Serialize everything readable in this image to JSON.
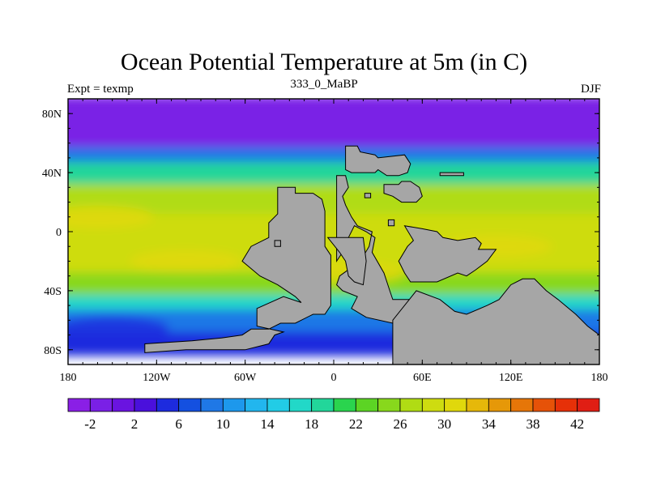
{
  "chart_data": {
    "type": "heatmap",
    "title": "Ocean Potential Temperature at 5m (in C)",
    "subtitle_left": "Expt = texmp",
    "subtitle_center": "333_0_MaBP",
    "subtitle_right": "DJF",
    "x_range": [
      -180,
      180
    ],
    "y_range": [
      -90,
      90
    ],
    "x_ticks": [
      {
        "value": -180,
        "label": "180"
      },
      {
        "value": -120,
        "label": "120W"
      },
      {
        "value": -60,
        "label": "60W"
      },
      {
        "value": 0,
        "label": "0"
      },
      {
        "value": 60,
        "label": "60E"
      },
      {
        "value": 120,
        "label": "120E"
      },
      {
        "value": 180,
        "label": "180"
      }
    ],
    "y_ticks": [
      {
        "value": 80,
        "label": "80N"
      },
      {
        "value": 40,
        "label": "40N"
      },
      {
        "value": 0,
        "label": "0"
      },
      {
        "value": -40,
        "label": "40S"
      },
      {
        "value": -80,
        "label": "80S"
      }
    ],
    "colorbar": {
      "levels": [
        -4,
        -2,
        0,
        2,
        4,
        6,
        8,
        10,
        12,
        14,
        16,
        18,
        20,
        22,
        24,
        26,
        28,
        30,
        32,
        34,
        36,
        38,
        40,
        42,
        44
      ],
      "labels": [
        {
          "value": -2,
          "label": "-2"
        },
        {
          "value": 2,
          "label": "2"
        },
        {
          "value": 6,
          "label": "6"
        },
        {
          "value": 10,
          "label": "10"
        },
        {
          "value": 14,
          "label": "14"
        },
        {
          "value": 18,
          "label": "18"
        },
        {
          "value": 22,
          "label": "22"
        },
        {
          "value": 26,
          "label": "26"
        },
        {
          "value": 30,
          "label": "30"
        },
        {
          "value": 34,
          "label": "34"
        },
        {
          "value": 38,
          "label": "38"
        },
        {
          "value": 42,
          "label": "42"
        }
      ],
      "colors": [
        "#8a1fe6",
        "#7a20e6",
        "#6a14e0",
        "#4a10dc",
        "#1d2bde",
        "#1450e0",
        "#1f78e6",
        "#1d98ec",
        "#22b6ee",
        "#22cce6",
        "#22d8c8",
        "#22d69a",
        "#2ad44e",
        "#5cd424",
        "#88d81c",
        "#b0dc14",
        "#cedc10",
        "#e0d80c",
        "#e6b80a",
        "#e69808",
        "#e67608",
        "#e65208",
        "#e63008",
        "#e01e14"
      ]
    },
    "temperature_zones": [
      {
        "lat_from": 90,
        "lat_to": 55,
        "temp": -2
      },
      {
        "lat_from": 55,
        "lat_to": 45,
        "temp": 8
      },
      {
        "lat_from": 45,
        "lat_to": 30,
        "temp": 18
      },
      {
        "lat_from": 30,
        "lat_to": 10,
        "temp": 26
      },
      {
        "lat_from": 10,
        "lat_to": -30,
        "temp": 28
      },
      {
        "lat_from": -30,
        "lat_to": -45,
        "temp": 24
      },
      {
        "lat_from": -45,
        "lat_to": -55,
        "temp": 16
      },
      {
        "lat_from": -55,
        "lat_to": -70,
        "temp": 8
      },
      {
        "lat_from": -70,
        "lat_to": -82,
        "temp": 4
      }
    ],
    "warm_spots": [
      {
        "lon": -160,
        "lat": 10,
        "temp": 30
      },
      {
        "lon": -100,
        "lat": -20,
        "temp": 30
      },
      {
        "lon": 110,
        "lat": -10,
        "temp": 31
      },
      {
        "lon": 10,
        "lat": -28,
        "temp": 31
      },
      {
        "lon": -150,
        "lat": -65,
        "temp": 4
      }
    ],
    "landmasses": [
      {
        "name": "americas",
        "points": [
          [
            -38,
            30
          ],
          [
            -26,
            30
          ],
          [
            -26,
            26
          ],
          [
            -14,
            26
          ],
          [
            -8,
            22
          ],
          [
            -6,
            14
          ],
          [
            -6,
            -10
          ],
          [
            -2,
            -16
          ],
          [
            -2,
            -50
          ],
          [
            -6,
            -56
          ],
          [
            -14,
            -56
          ],
          [
            -22,
            -60
          ],
          [
            -26,
            -62
          ],
          [
            -36,
            -62
          ],
          [
            -44,
            -66
          ],
          [
            -56,
            -66
          ],
          [
            -62,
            -70
          ],
          [
            -76,
            -72
          ],
          [
            -96,
            -74
          ],
          [
            -128,
            -76
          ],
          [
            -128,
            -82
          ],
          [
            -100,
            -80
          ],
          [
            -60,
            -80
          ],
          [
            -44,
            -76
          ],
          [
            -40,
            -70
          ],
          [
            -34,
            -68
          ],
          [
            -52,
            -64
          ],
          [
            -52,
            -52
          ],
          [
            -34,
            -44
          ],
          [
            -22,
            -48
          ],
          [
            -26,
            -44
          ],
          [
            -38,
            -36
          ],
          [
            -50,
            -30
          ],
          [
            -62,
            -20
          ],
          [
            -56,
            -10
          ],
          [
            -44,
            -4
          ],
          [
            -44,
            6
          ],
          [
            -38,
            12
          ],
          [
            -38,
            30
          ]
        ]
      },
      {
        "name": "europe-africa",
        "points": [
          [
            2,
            38
          ],
          [
            8,
            38
          ],
          [
            10,
            30
          ],
          [
            6,
            24
          ],
          [
            8,
            18
          ],
          [
            12,
            10
          ],
          [
            16,
            4
          ],
          [
            26,
            0
          ],
          [
            24,
            -10
          ],
          [
            18,
            -20
          ],
          [
            4,
            -30
          ],
          [
            2,
            -36
          ],
          [
            6,
            -40
          ],
          [
            16,
            -44
          ],
          [
            12,
            -52
          ],
          [
            22,
            -58
          ],
          [
            40,
            -62
          ],
          [
            60,
            -62
          ],
          [
            60,
            -54
          ],
          [
            60,
            -46
          ],
          [
            40,
            -46
          ],
          [
            38,
            -40
          ],
          [
            34,
            -28
          ],
          [
            26,
            -14
          ],
          [
            28,
            -4
          ],
          [
            22,
            0
          ],
          [
            14,
            4
          ],
          [
            10,
            -4
          ],
          [
            6,
            -14
          ],
          [
            2,
            -20
          ],
          [
            2,
            38
          ]
        ]
      },
      {
        "name": "africa-main",
        "points": [
          [
            -4,
            -4
          ],
          [
            20,
            -4
          ],
          [
            22,
            -20
          ],
          [
            20,
            -36
          ],
          [
            14,
            -34
          ],
          [
            10,
            -30
          ],
          [
            8,
            -20
          ],
          [
            4,
            -14
          ],
          [
            -4,
            -4
          ]
        ]
      },
      {
        "name": "indonesia-australia",
        "points": [
          [
            48,
            4
          ],
          [
            60,
            2
          ],
          [
            70,
            0
          ],
          [
            74,
            -4
          ],
          [
            84,
            -6
          ],
          [
            96,
            -4
          ],
          [
            100,
            -8
          ],
          [
            98,
            -12
          ],
          [
            110,
            -12
          ],
          [
            104,
            -20
          ],
          [
            96,
            -26
          ],
          [
            90,
            -30
          ],
          [
            84,
            -28
          ],
          [
            70,
            -34
          ],
          [
            52,
            -34
          ],
          [
            48,
            -28
          ],
          [
            44,
            -20
          ],
          [
            50,
            -10
          ],
          [
            54,
            -6
          ],
          [
            48,
            4
          ]
        ]
      },
      {
        "name": "south-east",
        "points": [
          [
            56,
            -40
          ],
          [
            72,
            -46
          ],
          [
            82,
            -54
          ],
          [
            90,
            -56
          ],
          [
            104,
            -50
          ],
          [
            112,
            -46
          ],
          [
            120,
            -36
          ],
          [
            128,
            -32
          ],
          [
            136,
            -32
          ],
          [
            144,
            -40
          ],
          [
            152,
            -46
          ],
          [
            164,
            -56
          ],
          [
            172,
            -64
          ],
          [
            180,
            -70
          ],
          [
            180,
            -90
          ],
          [
            40,
            -90
          ],
          [
            40,
            -60
          ],
          [
            56,
            -40
          ]
        ]
      },
      {
        "name": "north-asia",
        "points": [
          [
            8,
            58
          ],
          [
            16,
            58
          ],
          [
            18,
            54
          ],
          [
            28,
            52
          ],
          [
            30,
            50
          ],
          [
            48,
            52
          ],
          [
            52,
            46
          ],
          [
            50,
            40
          ],
          [
            44,
            38
          ],
          [
            36,
            38
          ],
          [
            30,
            42
          ],
          [
            28,
            40
          ],
          [
            12,
            40
          ],
          [
            8,
            42
          ],
          [
            8,
            58
          ]
        ]
      },
      {
        "name": "east-island",
        "points": [
          [
            72,
            40
          ],
          [
            88,
            40
          ],
          [
            88,
            38
          ],
          [
            72,
            38
          ],
          [
            72,
            40
          ]
        ]
      },
      {
        "name": "mid-asia",
        "points": [
          [
            34,
            32
          ],
          [
            44,
            32
          ],
          [
            46,
            34
          ],
          [
            52,
            34
          ],
          [
            58,
            30
          ],
          [
            60,
            24
          ],
          [
            56,
            20
          ],
          [
            46,
            20
          ],
          [
            40,
            24
          ],
          [
            34,
            26
          ],
          [
            34,
            32
          ]
        ]
      },
      {
        "name": "small-isle-1",
        "points": [
          [
            21,
            26
          ],
          [
            25,
            26
          ],
          [
            25,
            23
          ],
          [
            21,
            23
          ],
          [
            21,
            26
          ]
        ]
      },
      {
        "name": "small-isle-2",
        "points": [
          [
            37,
            8
          ],
          [
            41,
            8
          ],
          [
            41,
            4
          ],
          [
            37,
            4
          ],
          [
            37,
            8
          ]
        ]
      },
      {
        "name": "small-isle-3",
        "points": [
          [
            -40,
            -6
          ],
          [
            -36,
            -6
          ],
          [
            -36,
            -10
          ],
          [
            -40,
            -10
          ],
          [
            -40,
            -6
          ]
        ]
      }
    ]
  }
}
